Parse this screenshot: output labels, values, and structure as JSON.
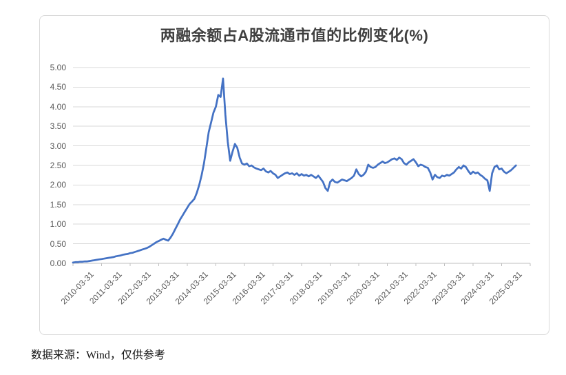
{
  "chart_data": {
    "type": "line",
    "title": "两融余额占A股流通市值的比例变化(%)",
    "xlabel": "",
    "ylabel": "",
    "ylim": [
      0,
      5
    ],
    "grid": true,
    "legend": false,
    "y_tick_labels": [
      "5.00",
      "4.50",
      "4.00",
      "3.50",
      "3.00",
      "2.50",
      "2.00",
      "1.50",
      "1.00",
      "0.50",
      "0.00"
    ],
    "x_tick_labels": [
      "2010-03-31",
      "2011-03-31",
      "2012-03-31",
      "2013-03-31",
      "2014-03-31",
      "2015-03-31",
      "2016-03-31",
      "2017-03-31",
      "2018-03-31",
      "2019-03-31",
      "2020-03-31",
      "2021-03-31",
      "2022-03-31",
      "2023-03-31",
      "2024-03-31",
      "2025-03-31"
    ],
    "series": [
      {
        "x_start": "2010-03",
        "x_step_months": 1,
        "values": [
          0.02,
          0.03,
          0.03,
          0.04,
          0.04,
          0.05,
          0.05,
          0.06,
          0.07,
          0.08,
          0.09,
          0.1,
          0.11,
          0.12,
          0.13,
          0.14,
          0.15,
          0.16,
          0.18,
          0.19,
          0.2,
          0.22,
          0.23,
          0.24,
          0.26,
          0.27,
          0.29,
          0.31,
          0.33,
          0.35,
          0.37,
          0.39,
          0.42,
          0.46,
          0.5,
          0.54,
          0.57,
          0.6,
          0.63,
          0.6,
          0.58,
          0.66,
          0.76,
          0.88,
          1.0,
          1.12,
          1.22,
          1.32,
          1.42,
          1.52,
          1.58,
          1.65,
          1.8,
          2.0,
          2.25,
          2.55,
          2.95,
          3.35,
          3.6,
          3.85,
          4.0,
          4.3,
          4.25,
          4.72,
          3.8,
          3.1,
          2.62,
          2.85,
          3.05,
          2.95,
          2.7,
          2.55,
          2.52,
          2.55,
          2.48,
          2.5,
          2.45,
          2.42,
          2.4,
          2.38,
          2.42,
          2.35,
          2.32,
          2.36,
          2.3,
          2.26,
          2.18,
          2.22,
          2.26,
          2.3,
          2.32,
          2.28,
          2.3,
          2.26,
          2.3,
          2.24,
          2.28,
          2.24,
          2.26,
          2.22,
          2.26,
          2.22,
          2.18,
          2.24,
          2.16,
          2.08,
          1.92,
          1.85,
          2.08,
          2.14,
          2.08,
          2.06,
          2.1,
          2.14,
          2.12,
          2.1,
          2.14,
          2.18,
          2.24,
          2.4,
          2.28,
          2.22,
          2.26,
          2.34,
          2.52,
          2.46,
          2.44,
          2.46,
          2.52,
          2.56,
          2.6,
          2.56,
          2.58,
          2.62,
          2.66,
          2.68,
          2.64,
          2.7,
          2.66,
          2.56,
          2.52,
          2.58,
          2.62,
          2.66,
          2.58,
          2.48,
          2.52,
          2.5,
          2.46,
          2.44,
          2.32,
          2.14,
          2.26,
          2.2,
          2.18,
          2.24,
          2.22,
          2.26,
          2.24,
          2.28,
          2.32,
          2.4,
          2.46,
          2.42,
          2.5,
          2.46,
          2.36,
          2.28,
          2.34,
          2.3,
          2.32,
          2.26,
          2.22,
          2.16,
          2.12,
          1.85,
          2.3,
          2.46,
          2.5,
          2.4,
          2.42,
          2.34,
          2.3,
          2.34,
          2.38,
          2.44,
          2.5
        ]
      }
    ]
  },
  "caption": {
    "text": "数据来源：Wind，仅供参考"
  },
  "colors": {
    "line": "#4472C4",
    "grid": "#D9D9D9",
    "axis": "#BFBFBF",
    "tick_text": "#595959",
    "title_text": "#3F3F3F"
  }
}
